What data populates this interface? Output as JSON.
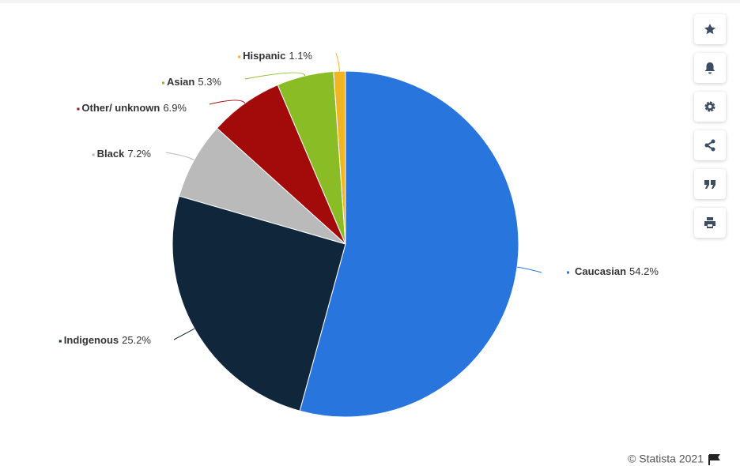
{
  "chart_data": {
    "type": "pie",
    "categories": [
      "Caucasian",
      "Indigenous",
      "Black",
      "Other/ unknown",
      "Asian",
      "Hispanic"
    ],
    "values": [
      54.2,
      25.2,
      7.2,
      6.9,
      5.3,
      1.1
    ],
    "value_labels": [
      "54.2%",
      "25.2%",
      "7.2%",
      "6.9%",
      "5.3%",
      "1.1%"
    ],
    "colors": [
      "#2876dd",
      "#10263b",
      "#bababa",
      "#a30a0a",
      "#8abc26",
      "#f0b424"
    ],
    "credit": "© Statista 2021"
  }
}
